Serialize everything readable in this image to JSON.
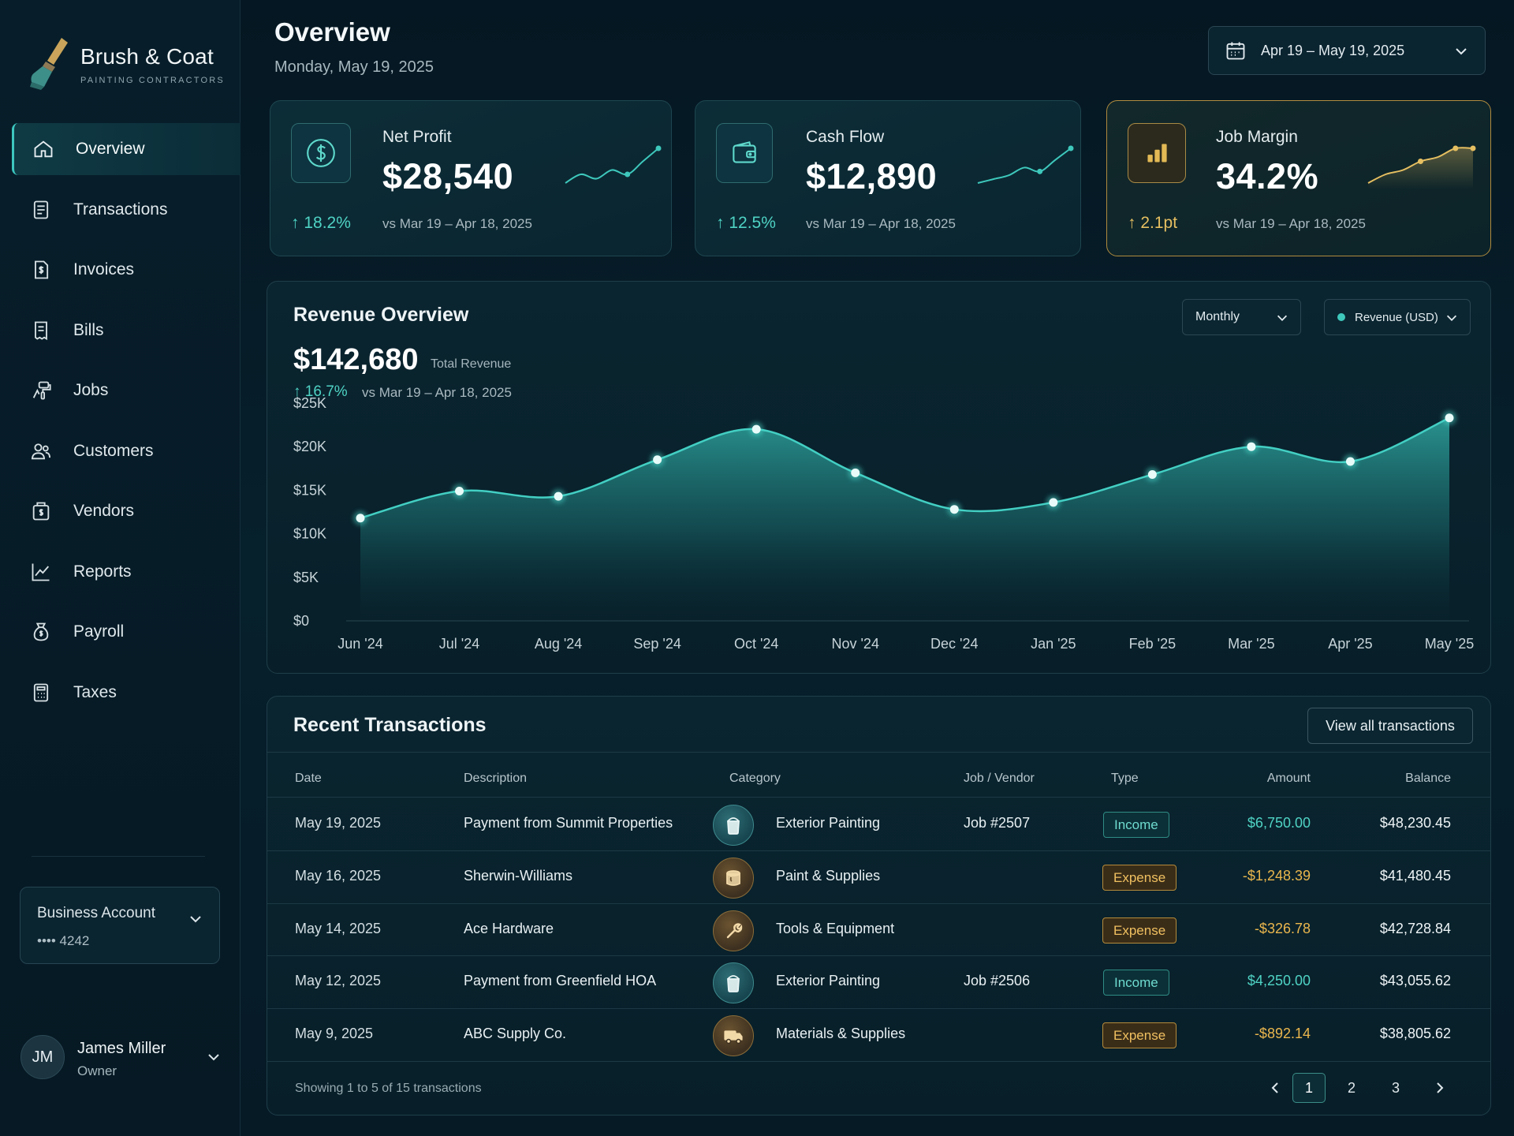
{
  "brand": {
    "name": "Brush & Coat",
    "tagline": "PAINTING CONTRACTORS"
  },
  "sidebar": {
    "items": [
      {
        "label": "Overview",
        "icon": "home-icon",
        "active": true
      },
      {
        "label": "Transactions",
        "icon": "receipt-icon"
      },
      {
        "label": "Invoices",
        "icon": "invoice-dollar-icon"
      },
      {
        "label": "Bills",
        "icon": "bill-icon"
      },
      {
        "label": "Jobs",
        "icon": "paint-roller-icon"
      },
      {
        "label": "Customers",
        "icon": "users-icon"
      },
      {
        "label": "Vendors",
        "icon": "vendor-icon"
      },
      {
        "label": "Reports",
        "icon": "line-chart-icon"
      },
      {
        "label": "Payroll",
        "icon": "payroll-icon"
      },
      {
        "label": "Taxes",
        "icon": "calculator-icon"
      }
    ],
    "account": {
      "title": "Business Account",
      "number": "•••• 4242"
    },
    "user": {
      "initials": "JM",
      "name": "James Miller",
      "role": "Owner"
    }
  },
  "header": {
    "title": "Overview",
    "date": "Monday, May 19, 2025",
    "date_range": "Apr 19 – May 19, 2025"
  },
  "kpis": [
    {
      "label": "Net Profit",
      "value": "$28,540",
      "delta": "↑ 18.2%",
      "compare": "vs Mar 19 – Apr 18, 2025",
      "icon": "dollar-circle-icon",
      "spark": [
        4,
        6,
        5,
        7,
        6,
        9,
        12
      ]
    },
    {
      "label": "Cash Flow",
      "value": "$12,890",
      "delta": "↑ 12.5%",
      "compare": "vs Mar 19 – Apr 18, 2025",
      "icon": "wallet-icon",
      "spark": [
        4,
        5,
        6,
        8,
        7,
        10,
        13
      ]
    },
    {
      "label": "Job Margin",
      "value": "34.2%",
      "delta": "↑ 2.1pt",
      "compare": "vs Mar 19 – Apr 18, 2025",
      "icon": "bar-chart-icon",
      "spark": [
        3,
        5,
        6,
        8,
        9,
        11,
        11
      ]
    }
  ],
  "revenue": {
    "title": "Revenue Overview",
    "total": "$142,680",
    "total_label": "Total Revenue",
    "delta": "↑ 16.7%",
    "compare": "vs Mar 19 – Apr 18, 2025",
    "period_select": "Monthly",
    "metric_select": "Revenue (USD)"
  },
  "chart_data": {
    "type": "area",
    "categories": [
      "Jun '24",
      "Jul '24",
      "Aug '24",
      "Sep '24",
      "Oct '24",
      "Nov '24",
      "Dec '24",
      "Jan '25",
      "Feb '25",
      "Mar '25",
      "Apr '25",
      "May '25"
    ],
    "values": [
      11800,
      14900,
      14300,
      18500,
      22000,
      17000,
      12800,
      13600,
      16800,
      20000,
      18300,
      23300
    ],
    "y_ticks": [
      "$0",
      "$5K",
      "$10K",
      "$15K",
      "$20K",
      "$25K"
    ],
    "ylim": [
      0,
      25000
    ],
    "grid": false,
    "color": "#3ec8bc"
  },
  "transactions": {
    "title": "Recent Transactions",
    "view_all": "View all transactions",
    "columns": [
      "Date",
      "Description",
      "Category",
      "Job / Vendor",
      "Type",
      "Amount",
      "Balance"
    ],
    "rows": [
      {
        "date": "May 19, 2025",
        "description": "Payment from Summit Properties",
        "category": "Exterior Painting",
        "cat_icon": "paint-bucket-icon",
        "tone": "teal",
        "job": "Job #2507",
        "type": "Income",
        "amount": "$6,750.00",
        "balance": "$48,230.45"
      },
      {
        "date": "May 16, 2025",
        "description": "Sherwin-Williams",
        "category": "Paint & Supplies",
        "cat_icon": "paint-can-icon",
        "tone": "amber",
        "job": "",
        "type": "Expense",
        "amount": "-$1,248.39",
        "balance": "$41,480.45"
      },
      {
        "date": "May 14, 2025",
        "description": "Ace Hardware",
        "category": "Tools & Equipment",
        "cat_icon": "wrench-icon",
        "tone": "amber",
        "job": "",
        "type": "Expense",
        "amount": "-$326.78",
        "balance": "$42,728.84"
      },
      {
        "date": "May 12, 2025",
        "description": "Payment from Greenfield HOA",
        "category": "Exterior Painting",
        "cat_icon": "paint-bucket-icon",
        "tone": "teal",
        "job": "Job #2506",
        "type": "Income",
        "amount": "$4,250.00",
        "balance": "$43,055.62"
      },
      {
        "date": "May 9, 2025",
        "description": "ABC Supply Co.",
        "category": "Materials & Supplies",
        "cat_icon": "truck-icon",
        "tone": "amber",
        "job": "",
        "type": "Expense",
        "amount": "-$892.14",
        "balance": "$38,805.62"
      }
    ],
    "footer": "Showing 1 to 5 of 15 transactions",
    "pages": [
      "1",
      "2",
      "3"
    ]
  },
  "colors": {
    "accent": "#3ec8bc",
    "gold": "#e5bf61",
    "background": "#061a26"
  }
}
